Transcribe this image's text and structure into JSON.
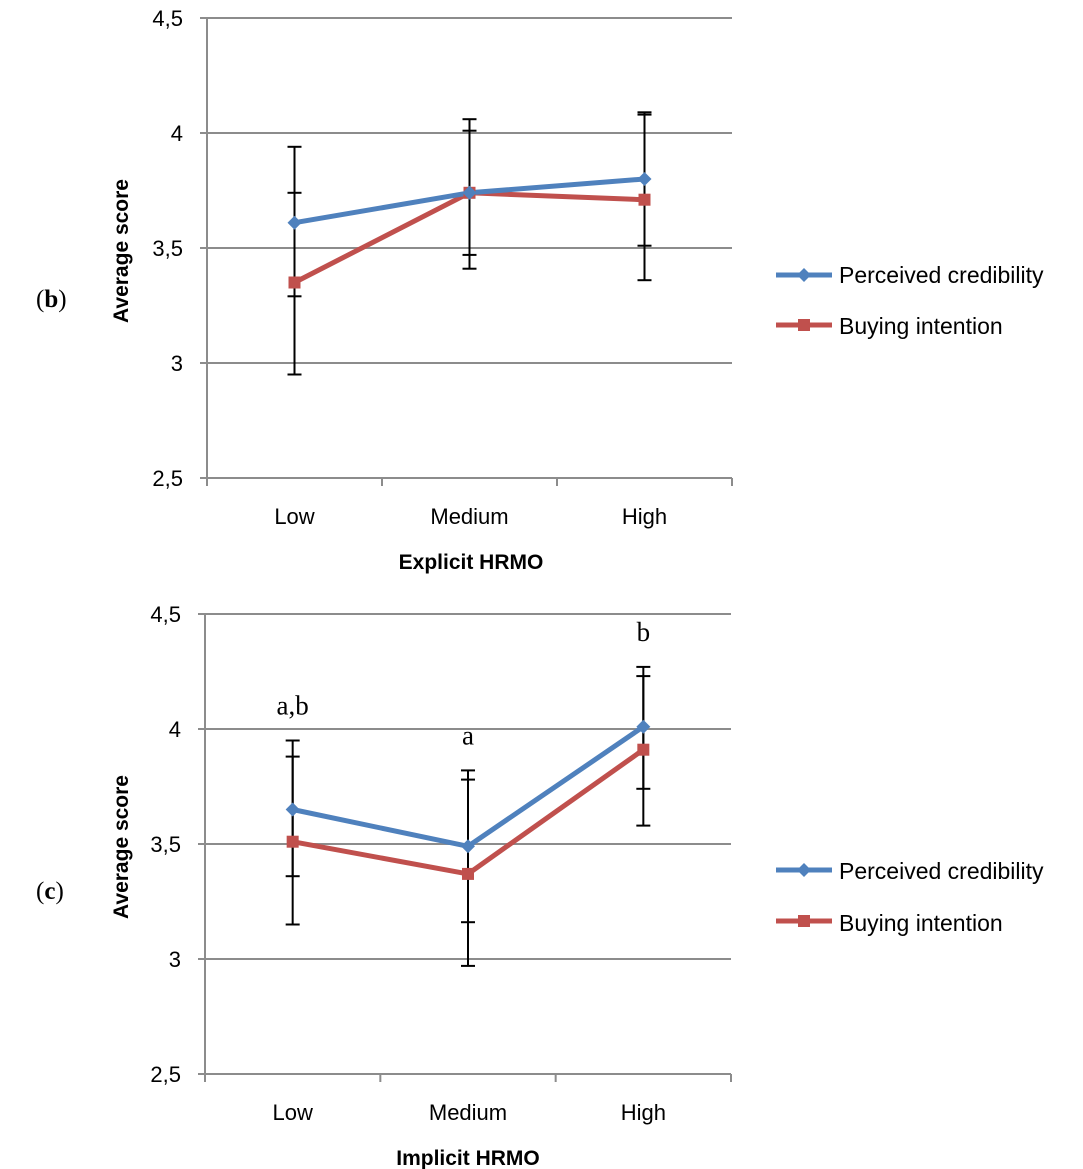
{
  "figure": {
    "panels": [
      {
        "label_open": "(",
        "label_letter": "b",
        "label_close": ")"
      },
      {
        "label_open": "(",
        "label_letter": "c",
        "label_close": ")"
      }
    ]
  },
  "chart_data": [
    {
      "type": "line",
      "categories": [
        "Low",
        "Medium",
        "High"
      ],
      "xlabel": "Explicit  HRMO",
      "ylabel": "Average score",
      "ylim": [
        2.5,
        4.5
      ],
      "yticks": [
        2.5,
        3,
        3.5,
        4,
        4.5
      ],
      "ytick_labels": [
        "2,5",
        "3",
        "3,5",
        "4",
        "4,5"
      ],
      "grid": true,
      "legend_position": "right",
      "series": [
        {
          "name": "Perceived credibility",
          "color": "#4F81BD",
          "marker": "diamond",
          "values": [
            3.61,
            3.74,
            3.8
          ],
          "error_low": [
            3.29,
            3.47,
            3.51
          ],
          "error_high": [
            3.94,
            4.01,
            4.08
          ]
        },
        {
          "name": "Buying intention",
          "color": "#C0504D",
          "marker": "square",
          "values": [
            3.35,
            3.74,
            3.71
          ],
          "error_low": [
            2.95,
            3.41,
            3.36
          ],
          "error_high": [
            3.74,
            4.06,
            4.09
          ]
        }
      ],
      "annotations": []
    },
    {
      "type": "line",
      "categories": [
        "Low",
        "Medium",
        "High"
      ],
      "xlabel": "Implicit  HRMO",
      "ylabel": "Average score",
      "ylim": [
        2.5,
        4.5
      ],
      "yticks": [
        2.5,
        3,
        3.5,
        4,
        4.5
      ],
      "ytick_labels": [
        "2,5",
        "3",
        "3,5",
        "4",
        "4,5"
      ],
      "grid": true,
      "legend_position": "right",
      "series": [
        {
          "name": "Perceived credibility",
          "color": "#4F81BD",
          "marker": "diamond",
          "values": [
            3.65,
            3.49,
            4.01
          ],
          "error_low": [
            3.36,
            3.16,
            3.74
          ],
          "error_high": [
            3.95,
            3.82,
            4.27
          ]
        },
        {
          "name": "Buying intention",
          "color": "#C0504D",
          "marker": "square",
          "values": [
            3.51,
            3.37,
            3.91
          ],
          "error_low": [
            3.15,
            2.97,
            3.58
          ],
          "error_high": [
            3.88,
            3.78,
            4.23
          ]
        }
      ],
      "annotations": [
        {
          "category": "Low",
          "text": "a,b"
        },
        {
          "category": "Medium",
          "text": "a"
        },
        {
          "category": "High",
          "text": "b"
        }
      ]
    }
  ]
}
